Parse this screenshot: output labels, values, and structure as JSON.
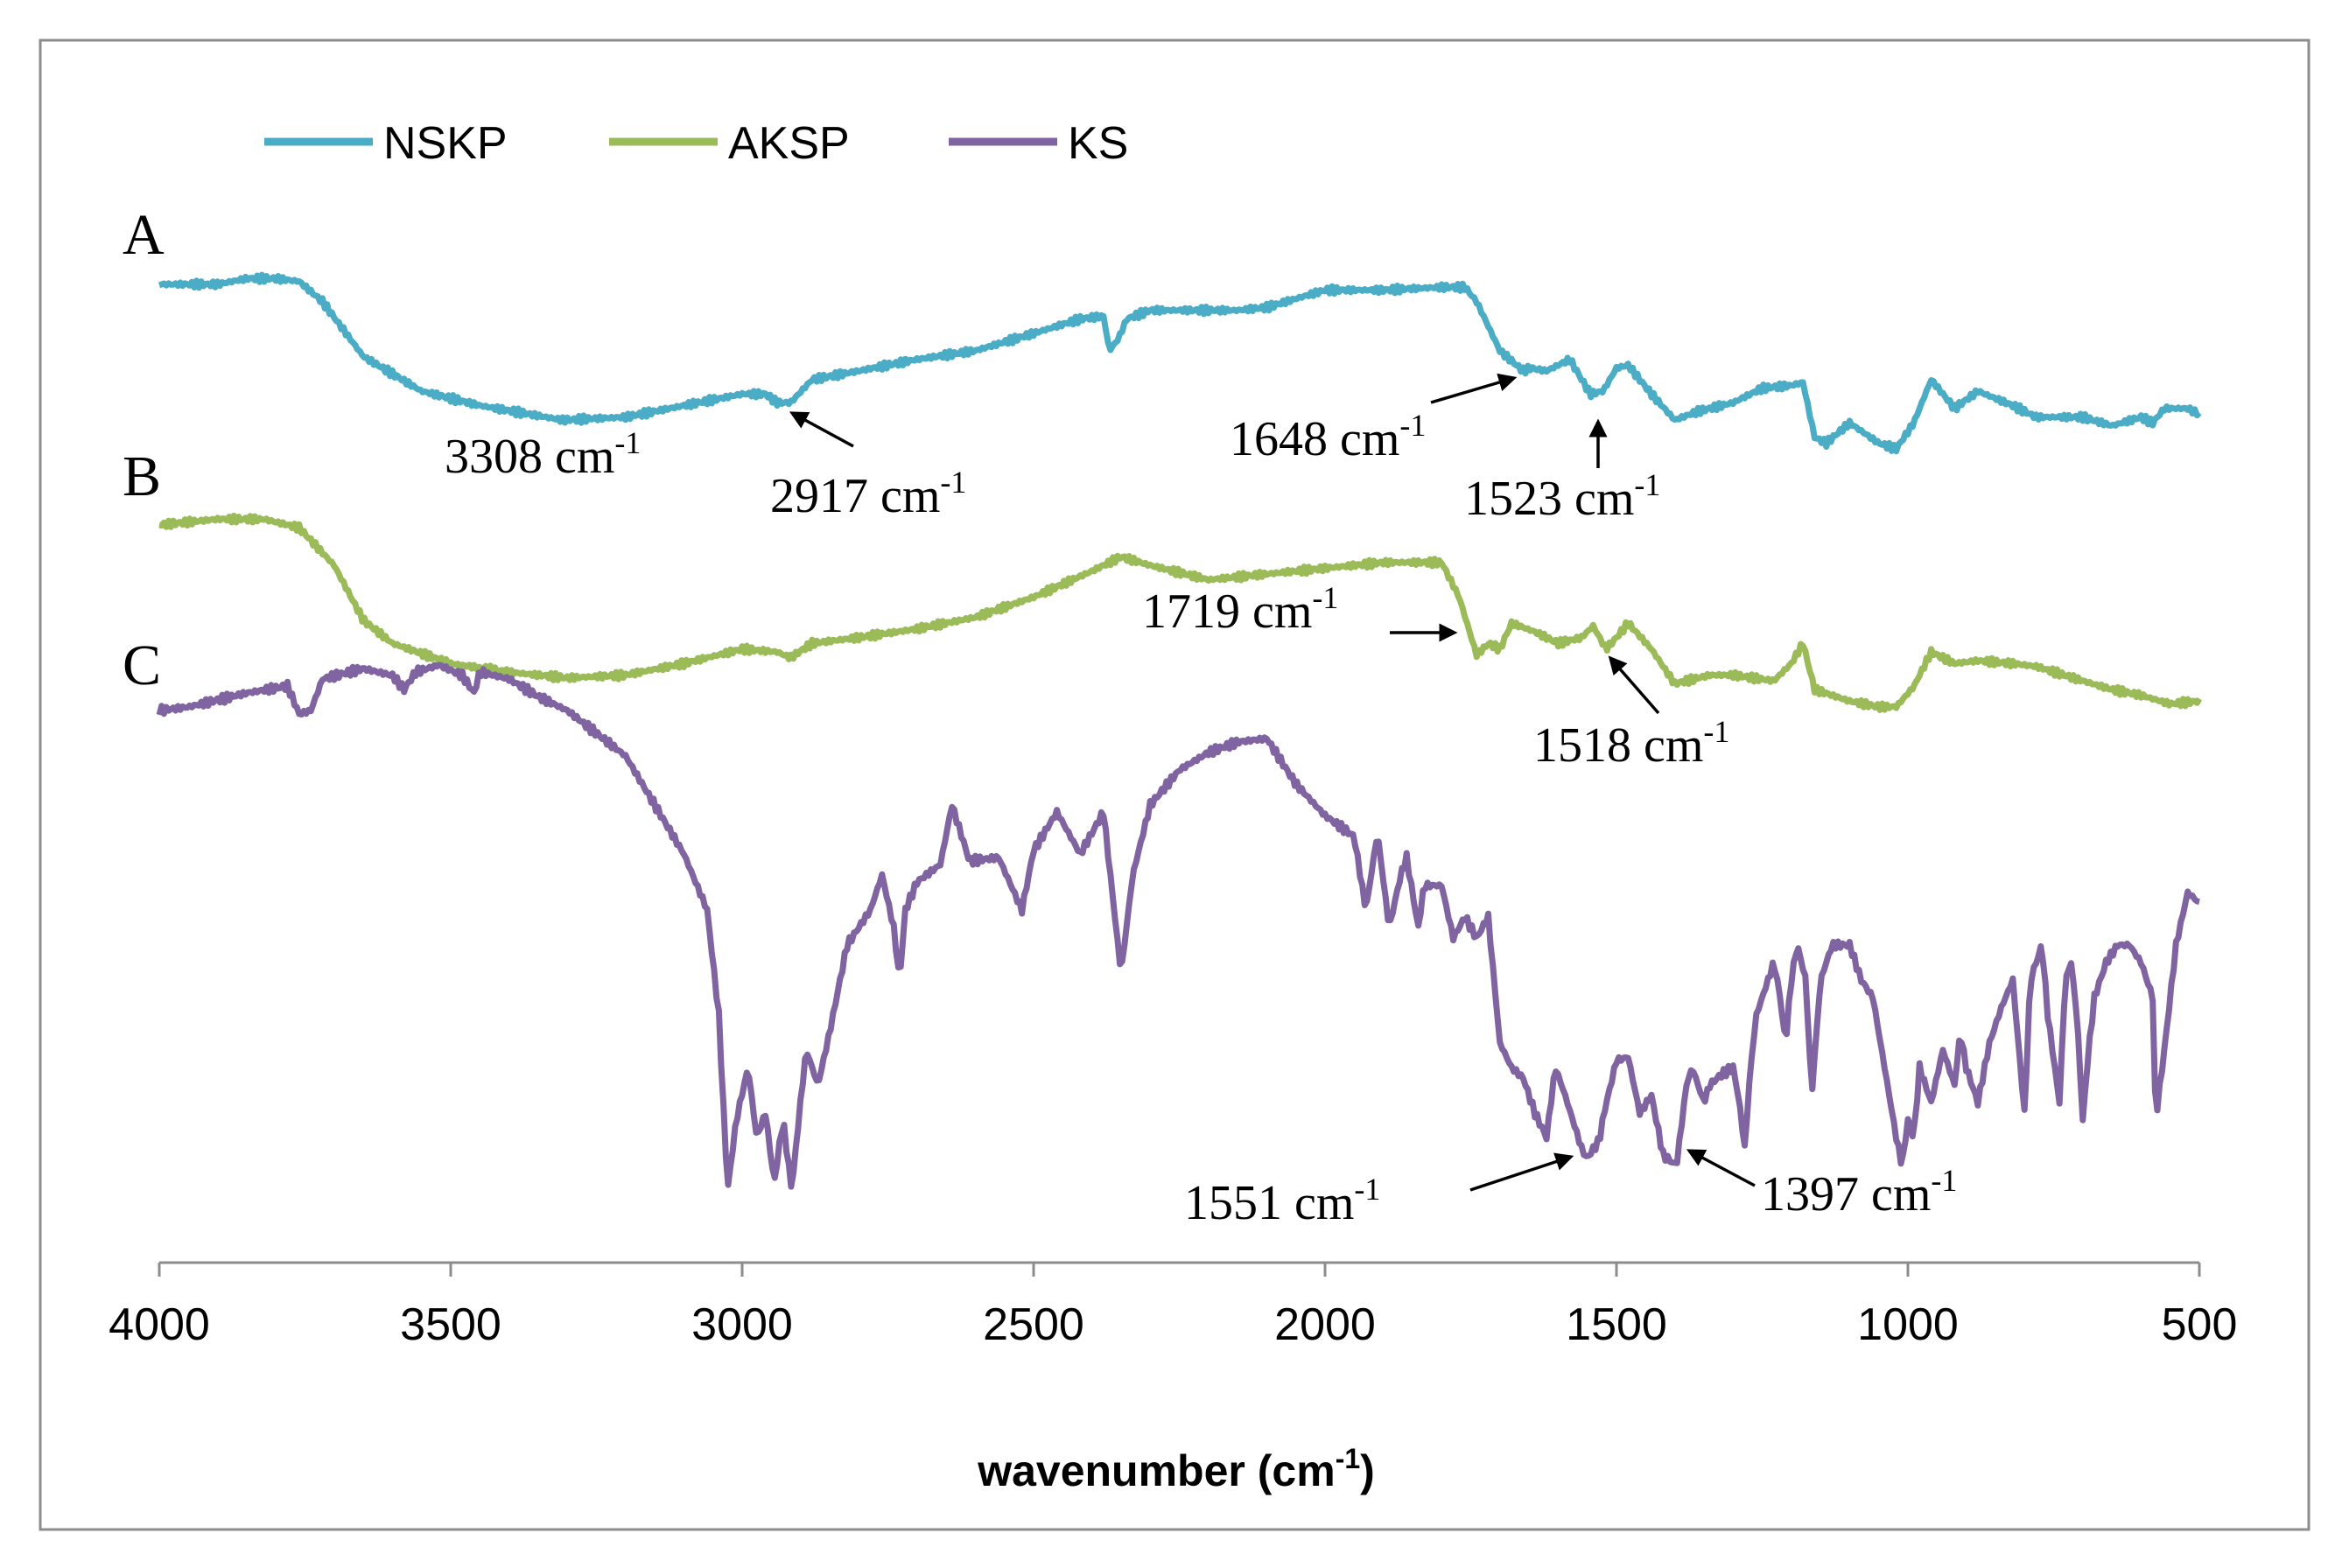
{
  "chart_data": {
    "type": "line",
    "xlabel": "wavenumber (cm",
    "xlabel_sup": "-1",
    "xlabel_suffix": ")",
    "xlim": [
      4000,
      500
    ],
    "x_reversed": true,
    "grid": false,
    "legend_position": "top-left",
    "ticks": [
      "4000",
      "3500",
      "3000",
      "2500",
      "2000",
      "1500",
      "1000",
      "500"
    ],
    "series": [
      {
        "name": "NSKP",
        "panel": "A",
        "color": "#4bacc6",
        "points": [
          [
            4000,
            0.3
          ],
          [
            3900,
            0.3
          ],
          [
            3850,
            0.1
          ],
          [
            3800,
            0.1
          ],
          [
            3760,
            0.2
          ],
          [
            3720,
            0.9
          ],
          [
            3650,
            2.8
          ],
          [
            3550,
            4.0
          ],
          [
            3450,
            4.5
          ],
          [
            3308,
            5.0
          ],
          [
            3200,
            4.9
          ],
          [
            3100,
            4.5
          ],
          [
            3000,
            4.1
          ],
          [
            2960,
            4.1
          ],
          [
            2940,
            4.4
          ],
          [
            2917,
            4.4
          ],
          [
            2880,
            3.6
          ],
          [
            2800,
            3.3
          ],
          [
            2700,
            2.9
          ],
          [
            2600,
            2.6
          ],
          [
            2500,
            2.0
          ],
          [
            2420,
            1.5
          ],
          [
            2380,
            1.4
          ],
          [
            2370,
            2.6
          ],
          [
            2355,
            2.2
          ],
          [
            2340,
            1.5
          ],
          [
            2300,
            1.2
          ],
          [
            2200,
            1.2
          ],
          [
            2150,
            1.2
          ],
          [
            2100,
            1.1
          ],
          [
            2000,
            0.5
          ],
          [
            1900,
            0.5
          ],
          [
            1800,
            0.4
          ],
          [
            1760,
            0.4
          ],
          [
            1740,
            0.9
          ],
          [
            1700,
            2.6
          ],
          [
            1660,
            3.3
          ],
          [
            1648,
            3.2
          ],
          [
            1620,
            3.3
          ],
          [
            1580,
            2.9
          ],
          [
            1545,
            4.1
          ],
          [
            1523,
            4.0
          ],
          [
            1500,
            3.2
          ],
          [
            1480,
            3.1
          ],
          [
            1440,
            4.1
          ],
          [
            1400,
            5.0
          ],
          [
            1360,
            4.7
          ],
          [
            1300,
            4.4
          ],
          [
            1250,
            3.9
          ],
          [
            1200,
            3.8
          ],
          [
            1180,
            3.7
          ],
          [
            1160,
            5.6
          ],
          [
            1140,
            5.8
          ],
          [
            1100,
            5.1
          ],
          [
            1050,
            5.8
          ],
          [
            1020,
            6.0
          ],
          [
            990,
            5.1
          ],
          [
            960,
            3.6
          ],
          [
            920,
            4.6
          ],
          [
            880,
            4.0
          ],
          [
            820,
            4.5
          ],
          [
            780,
            4.9
          ],
          [
            700,
            4.9
          ],
          [
            650,
            5.2
          ],
          [
            600,
            4.9
          ],
          [
            580,
            5.1
          ],
          [
            560,
            4.6
          ],
          [
            520,
            4.6
          ],
          [
            500,
            4.8
          ]
        ]
      },
      {
        "name": "AKSP",
        "panel": "B",
        "color": "#9bbb59",
        "points": [
          [
            4000,
            0.3
          ],
          [
            3900,
            0.1
          ],
          [
            3820,
            0.1
          ],
          [
            3760,
            0.4
          ],
          [
            3700,
            1.7
          ],
          [
            3650,
            3.6
          ],
          [
            3600,
            4.4
          ],
          [
            3500,
            5.1
          ],
          [
            3400,
            5.4
          ],
          [
            3300,
            5.6
          ],
          [
            3200,
            5.5
          ],
          [
            3100,
            5.1
          ],
          [
            3000,
            4.6
          ],
          [
            2940,
            4.7
          ],
          [
            2917,
            4.9
          ],
          [
            2880,
            4.4
          ],
          [
            2800,
            4.2
          ],
          [
            2700,
            3.9
          ],
          [
            2600,
            3.5
          ],
          [
            2500,
            2.8
          ],
          [
            2400,
            1.9
          ],
          [
            2350,
            1.4
          ],
          [
            2300,
            1.7
          ],
          [
            2200,
            2.2
          ],
          [
            2100,
            2.0
          ],
          [
            2000,
            1.8
          ],
          [
            1900,
            1.6
          ],
          [
            1800,
            1.6
          ],
          [
            1770,
            2.8
          ],
          [
            1740,
            4.8
          ],
          [
            1719,
            4.4
          ],
          [
            1700,
            4.6
          ],
          [
            1680,
            3.7
          ],
          [
            1640,
            4.0
          ],
          [
            1600,
            4.4
          ],
          [
            1560,
            4.2
          ],
          [
            1540,
            3.8
          ],
          [
            1518,
            4.6
          ],
          [
            1500,
            4.2
          ],
          [
            1480,
            3.7
          ],
          [
            1440,
            4.6
          ],
          [
            1400,
            5.8
          ],
          [
            1340,
            5.5
          ],
          [
            1300,
            5.5
          ],
          [
            1230,
            5.7
          ],
          [
            1200,
            5.1
          ],
          [
            1180,
            4.4
          ],
          [
            1160,
            6.0
          ],
          [
            1100,
            6.4
          ],
          [
            1050,
            6.6
          ],
          [
            1020,
            6.6
          ],
          [
            990,
            5.9
          ],
          [
            960,
            4.7
          ],
          [
            920,
            5.1
          ],
          [
            880,
            5.0
          ],
          [
            820,
            5.1
          ],
          [
            780,
            5.2
          ],
          [
            700,
            5.7
          ],
          [
            650,
            6.0
          ],
          [
            600,
            6.2
          ],
          [
            550,
            6.5
          ],
          [
            500,
            6.4
          ]
        ]
      },
      {
        "name": "KS",
        "panel": "C",
        "color": "#8064a2",
        "points": [
          [
            4000,
            0.3
          ],
          [
            3950,
            0.2
          ],
          [
            3900,
            0.0
          ],
          [
            3850,
            -0.2
          ],
          [
            3780,
            -0.4
          ],
          [
            3760,
            0.4
          ],
          [
            3740,
            0.3
          ],
          [
            3720,
            -0.6
          ],
          [
            3650,
            -0.9
          ],
          [
            3600,
            -0.7
          ],
          [
            3580,
            -0.3
          ],
          [
            3560,
            -0.8
          ],
          [
            3520,
            -1.0
          ],
          [
            3480,
            -0.7
          ],
          [
            3460,
            -0.2
          ],
          [
            3450,
            -0.8
          ],
          [
            3400,
            -0.6
          ],
          [
            3350,
            -0.1
          ],
          [
            3300,
            0.3
          ],
          [
            3200,
            1.6
          ],
          [
            3150,
            3.0
          ],
          [
            3100,
            4.4
          ],
          [
            3060,
            6.0
          ],
          [
            3040,
            9.0
          ],
          [
            3025,
            14.0
          ],
          [
            3010,
            12.0
          ],
          [
            2990,
            10.5
          ],
          [
            2975,
            12.5
          ],
          [
            2960,
            11.8
          ],
          [
            2945,
            13.8
          ],
          [
            2930,
            12.0
          ],
          [
            2915,
            14.0
          ],
          [
            2900,
            11.5
          ],
          [
            2890,
            10.0
          ],
          [
            2870,
            11.0
          ],
          [
            2850,
            9.5
          ],
          [
            2820,
            7.0
          ],
          [
            2780,
            6.0
          ],
          [
            2760,
            5.0
          ],
          [
            2740,
            6.5
          ],
          [
            2730,
            8.0
          ],
          [
            2720,
            6.0
          ],
          [
            2700,
            5.2
          ],
          [
            2660,
            4.7
          ],
          [
            2640,
            3.0
          ],
          [
            2610,
            4.6
          ],
          [
            2560,
            4.5
          ],
          [
            2520,
            6.0
          ],
          [
            2500,
            4.3
          ],
          [
            2460,
            3.2
          ],
          [
            2420,
            4.4
          ],
          [
            2380,
            3.2
          ],
          [
            2350,
            7.8
          ],
          [
            2330,
            5.0
          ],
          [
            2300,
            3.0
          ],
          [
            2250,
            2.0
          ],
          [
            2200,
            1.5
          ],
          [
            2150,
            1.2
          ],
          [
            2100,
            1.1
          ],
          [
            2050,
            2.4
          ],
          [
            2000,
            3.3
          ],
          [
            1950,
            3.9
          ],
          [
            1930,
            6.0
          ],
          [
            1910,
            3.8
          ],
          [
            1890,
            6.5
          ],
          [
            1870,
            5.0
          ],
          [
            1860,
            4.5
          ],
          [
            1840,
            6.5
          ],
          [
            1830,
            5.3
          ],
          [
            1800,
            5.3
          ],
          [
            1780,
            6.8
          ],
          [
            1760,
            6.2
          ],
          [
            1740,
            6.8
          ],
          [
            1720,
            6.2
          ],
          [
            1700,
            9.8
          ],
          [
            1680,
            10.5
          ],
          [
            1660,
            10.8
          ],
          [
            1640,
            11.8
          ],
          [
            1620,
            12.5
          ],
          [
            1605,
            10.5
          ],
          [
            1590,
            11.2
          ],
          [
            1575,
            12.0
          ],
          [
            1560,
            12.8
          ],
          [
            1551,
            13.1
          ],
          [
            1530,
            12.6
          ],
          [
            1520,
            11.7
          ],
          [
            1500,
            10.3
          ],
          [
            1480,
            10.2
          ],
          [
            1460,
            11.8
          ],
          [
            1440,
            11.3
          ],
          [
            1420,
            13.0
          ],
          [
            1397,
            13.3
          ],
          [
            1380,
            11.0
          ],
          [
            1370,
            10.5
          ],
          [
            1350,
            11.5
          ],
          [
            1340,
            11.0
          ],
          [
            1320,
            10.7
          ],
          [
            1300,
            10.5
          ],
          [
            1290,
            11.4
          ],
          [
            1280,
            12.8
          ],
          [
            1270,
            10.5
          ],
          [
            1260,
            9.0
          ],
          [
            1240,
            8.0
          ],
          [
            1230,
            7.5
          ],
          [
            1220,
            8.4
          ],
          [
            1210,
            9.8
          ],
          [
            1200,
            8.0
          ],
          [
            1190,
            7.0
          ],
          [
            1175,
            8.0
          ],
          [
            1165,
            11.3
          ],
          [
            1150,
            8.0
          ],
          [
            1130,
            7.0
          ],
          [
            1100,
            7.0
          ],
          [
            1080,
            8.0
          ],
          [
            1060,
            8.5
          ],
          [
            1040,
            10.5
          ],
          [
            1020,
            12.5
          ],
          [
            1010,
            13.3
          ],
          [
            1000,
            12.0
          ],
          [
            990,
            12.5
          ],
          [
            980,
            10.5
          ],
          [
            960,
            11.5
          ],
          [
            940,
            10.0
          ],
          [
            920,
            11.0
          ],
          [
            910,
            9.5
          ],
          [
            900,
            10.5
          ],
          [
            880,
            11.5
          ],
          [
            860,
            9.8
          ],
          [
            840,
            8.8
          ],
          [
            820,
            8.0
          ],
          [
            800,
            11.8
          ],
          [
            790,
            8.0
          ],
          [
            770,
            7.0
          ],
          [
            760,
            9.0
          ],
          [
            740,
            11.5
          ],
          [
            730,
            8.0
          ],
          [
            720,
            7.5
          ],
          [
            710,
            9.0
          ],
          [
            700,
            12.0
          ],
          [
            690,
            10.0
          ],
          [
            680,
            8.5
          ],
          [
            660,
            7.5
          ],
          [
            640,
            7.0
          ],
          [
            620,
            7.0
          ],
          [
            600,
            7.5
          ],
          [
            580,
            8.5
          ],
          [
            575,
            12.0
          ],
          [
            560,
            10.0
          ],
          [
            540,
            7.0
          ],
          [
            520,
            5.5
          ],
          [
            500,
            5.8
          ]
        ]
      }
    ],
    "panel_labels": [
      "A",
      "B",
      "C"
    ],
    "annotations": [
      {
        "id": "a3308",
        "text": "3308 cm",
        "sup": "-1",
        "series": "NSKP",
        "x": 3308,
        "arrow": false
      },
      {
        "id": "a2917",
        "text": "2917 cm",
        "sup": "-1",
        "series": "NSKP",
        "x": 2917,
        "arrow": true
      },
      {
        "id": "a1648",
        "text": "1648 cm",
        "sup": "-1",
        "series": "NSKP",
        "x": 1648,
        "arrow": true
      },
      {
        "id": "a1523",
        "text": "1523 cm",
        "sup": "-1",
        "series": "NSKP",
        "x": 1523,
        "arrow": true
      },
      {
        "id": "a1719",
        "text": "1719 cm",
        "sup": "-1",
        "series": "AKSP",
        "x": 1719,
        "arrow": true
      },
      {
        "id": "a1518",
        "text": "1518 cm",
        "sup": "-1",
        "series": "AKSP",
        "x": 1518,
        "arrow": true
      },
      {
        "id": "a1551",
        "text": "1551 cm",
        "sup": "-1",
        "series": "KS",
        "x": 1551,
        "arrow": true
      },
      {
        "id": "a1397",
        "text": "1397 cm",
        "sup": "-1",
        "series": "KS",
        "x": 1397,
        "arrow": true
      }
    ]
  }
}
